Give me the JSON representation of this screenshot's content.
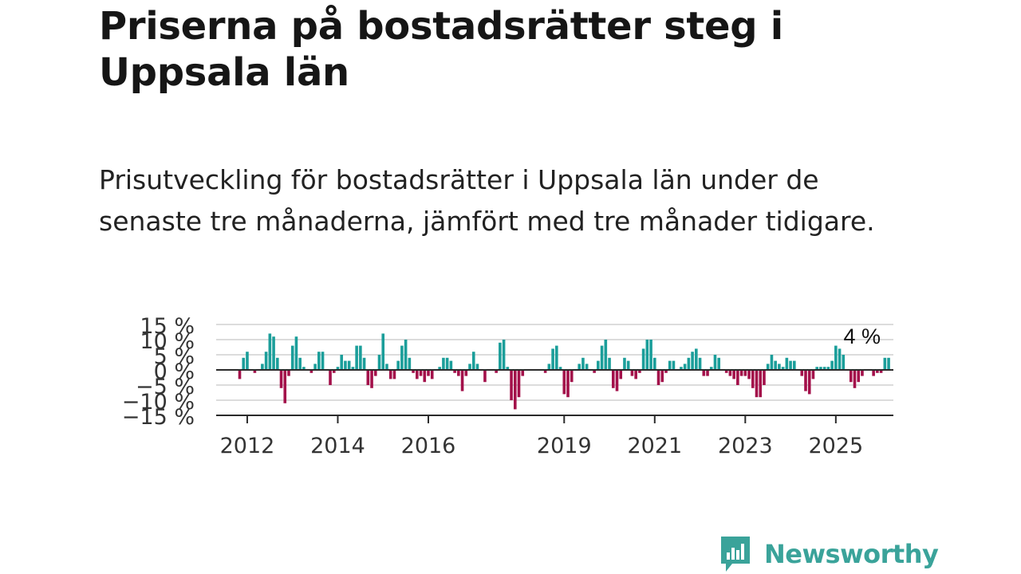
{
  "header": {
    "title": "Priserna på bostadsrätter steg i Uppsala län",
    "subtitle": "Prisutveckling för bostadsrätter i Uppsala län under de senaste tre månaderna, jämfört med tre månader tidigare."
  },
  "brand": {
    "name": "Newsworthy",
    "color": "#3aa39a"
  },
  "chart_data": {
    "type": "bar",
    "x_start": "2011-11",
    "x_step": "month",
    "colors": {
      "positive": "#1b9e9a",
      "negative": "#a3104a"
    },
    "yticks": [
      {
        "value": 15,
        "label": "15 %"
      },
      {
        "value": 10,
        "label": "10 %"
      },
      {
        "value": 5,
        "label": "5 %"
      },
      {
        "value": 0,
        "label": "0 %"
      },
      {
        "value": -5,
        "label": "−5 %"
      },
      {
        "value": -10,
        "label": "−10 %"
      },
      {
        "value": -15,
        "label": "−15 %"
      }
    ],
    "ylim": [
      -15,
      15
    ],
    "xticks": [
      {
        "date": "2012-01",
        "label": "2012"
      },
      {
        "date": "2014-01",
        "label": "2014"
      },
      {
        "date": "2016-01",
        "label": "2016"
      },
      {
        "date": "2019-01",
        "label": "2019"
      },
      {
        "date": "2021-01",
        "label": "2021"
      },
      {
        "date": "2023-01",
        "label": "2023"
      },
      {
        "date": "2025-01",
        "label": "2025"
      }
    ],
    "grid": true,
    "last_value_label": "4 %",
    "values": [
      -3,
      4,
      6,
      0,
      -1,
      0,
      2,
      6,
      12,
      11,
      4,
      -6,
      -11,
      -2,
      8,
      11,
      4,
      1,
      0,
      -1,
      2,
      6,
      6,
      0,
      -5,
      -1,
      1,
      5,
      3,
      3,
      1,
      8,
      8,
      4,
      -5,
      -6,
      -2,
      5,
      12,
      2,
      -3,
      -3,
      3,
      8,
      10,
      4,
      -1,
      -3,
      -2,
      -4,
      -2,
      -3,
      0,
      1,
      4,
      4,
      3,
      -1,
      -2,
      -7,
      -2,
      2,
      6,
      2,
      0,
      -4,
      0,
      0,
      -1,
      9,
      10,
      1,
      -10,
      -13,
      -9,
      -2,
      0,
      0,
      0,
      0,
      0,
      -1,
      2,
      7,
      8,
      1,
      -8,
      -9,
      -4,
      0,
      2,
      4,
      2,
      0,
      -1,
      3,
      8,
      10,
      4,
      -6,
      -7,
      -3,
      4,
      3,
      -2,
      -3,
      -1,
      7,
      10,
      10,
      4,
      -5,
      -4,
      -1,
      3,
      3,
      0,
      1,
      2,
      4,
      6,
      7,
      4,
      -2,
      -2,
      1,
      5,
      4,
      0,
      -1,
      -2,
      -3,
      -5,
      -2,
      -2,
      -3,
      -6,
      -9,
      -9,
      -5,
      2,
      5,
      3,
      2,
      1,
      4,
      3,
      3,
      0,
      -2,
      -7,
      -8,
      -3,
      1,
      1,
      1,
      1,
      3,
      8,
      7,
      5,
      0,
      -4,
      -6,
      -4,
      -2,
      0,
      0,
      -2,
      -1,
      -1,
      4,
      4
    ]
  }
}
